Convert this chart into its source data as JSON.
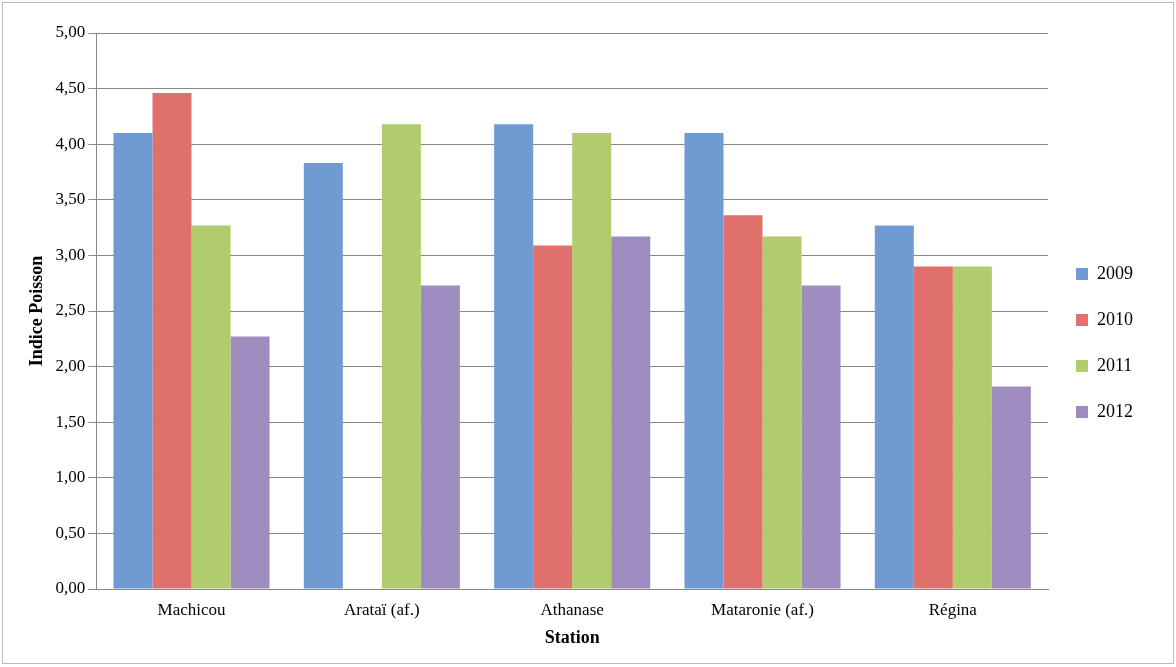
{
  "chart_data": {
    "type": "bar",
    "xlabel": "Station",
    "ylabel": "Indice Poisson",
    "categories": [
      "Machicou",
      "Arataï (af.)",
      "Athanase",
      "Mataronie (af.)",
      "Régina"
    ],
    "series": [
      {
        "name": "2009",
        "color": "#6f9bd2",
        "values": [
          4.1,
          3.83,
          4.18,
          4.1,
          3.27
        ]
      },
      {
        "name": "2010",
        "color": "#e0706c",
        "values": [
          4.46,
          null,
          3.09,
          3.36,
          2.9
        ]
      },
      {
        "name": "2011",
        "color": "#b0cc6c",
        "values": [
          3.27,
          4.18,
          4.1,
          3.17,
          2.9
        ]
      },
      {
        "name": "2012",
        "color": "#9f8cbf",
        "values": [
          2.27,
          2.73,
          3.17,
          2.73,
          1.82
        ]
      }
    ],
    "ylim": [
      0,
      5
    ],
    "yticks": [
      {
        "value": 0,
        "label": "0,00"
      },
      {
        "value": 0.5,
        "label": "0,50"
      },
      {
        "value": 1,
        "label": "1,00"
      },
      {
        "value": 1.5,
        "label": "1,50"
      },
      {
        "value": 2,
        "label": "2,00"
      },
      {
        "value": 2.5,
        "label": "2,50"
      },
      {
        "value": 3,
        "label": "3,00"
      },
      {
        "value": 3.5,
        "label": "3,50"
      },
      {
        "value": 4,
        "label": "4,00"
      },
      {
        "value": 4.5,
        "label": "4,50"
      },
      {
        "value": 5,
        "label": "5,00"
      }
    ],
    "grid": "y",
    "legend": "right"
  }
}
